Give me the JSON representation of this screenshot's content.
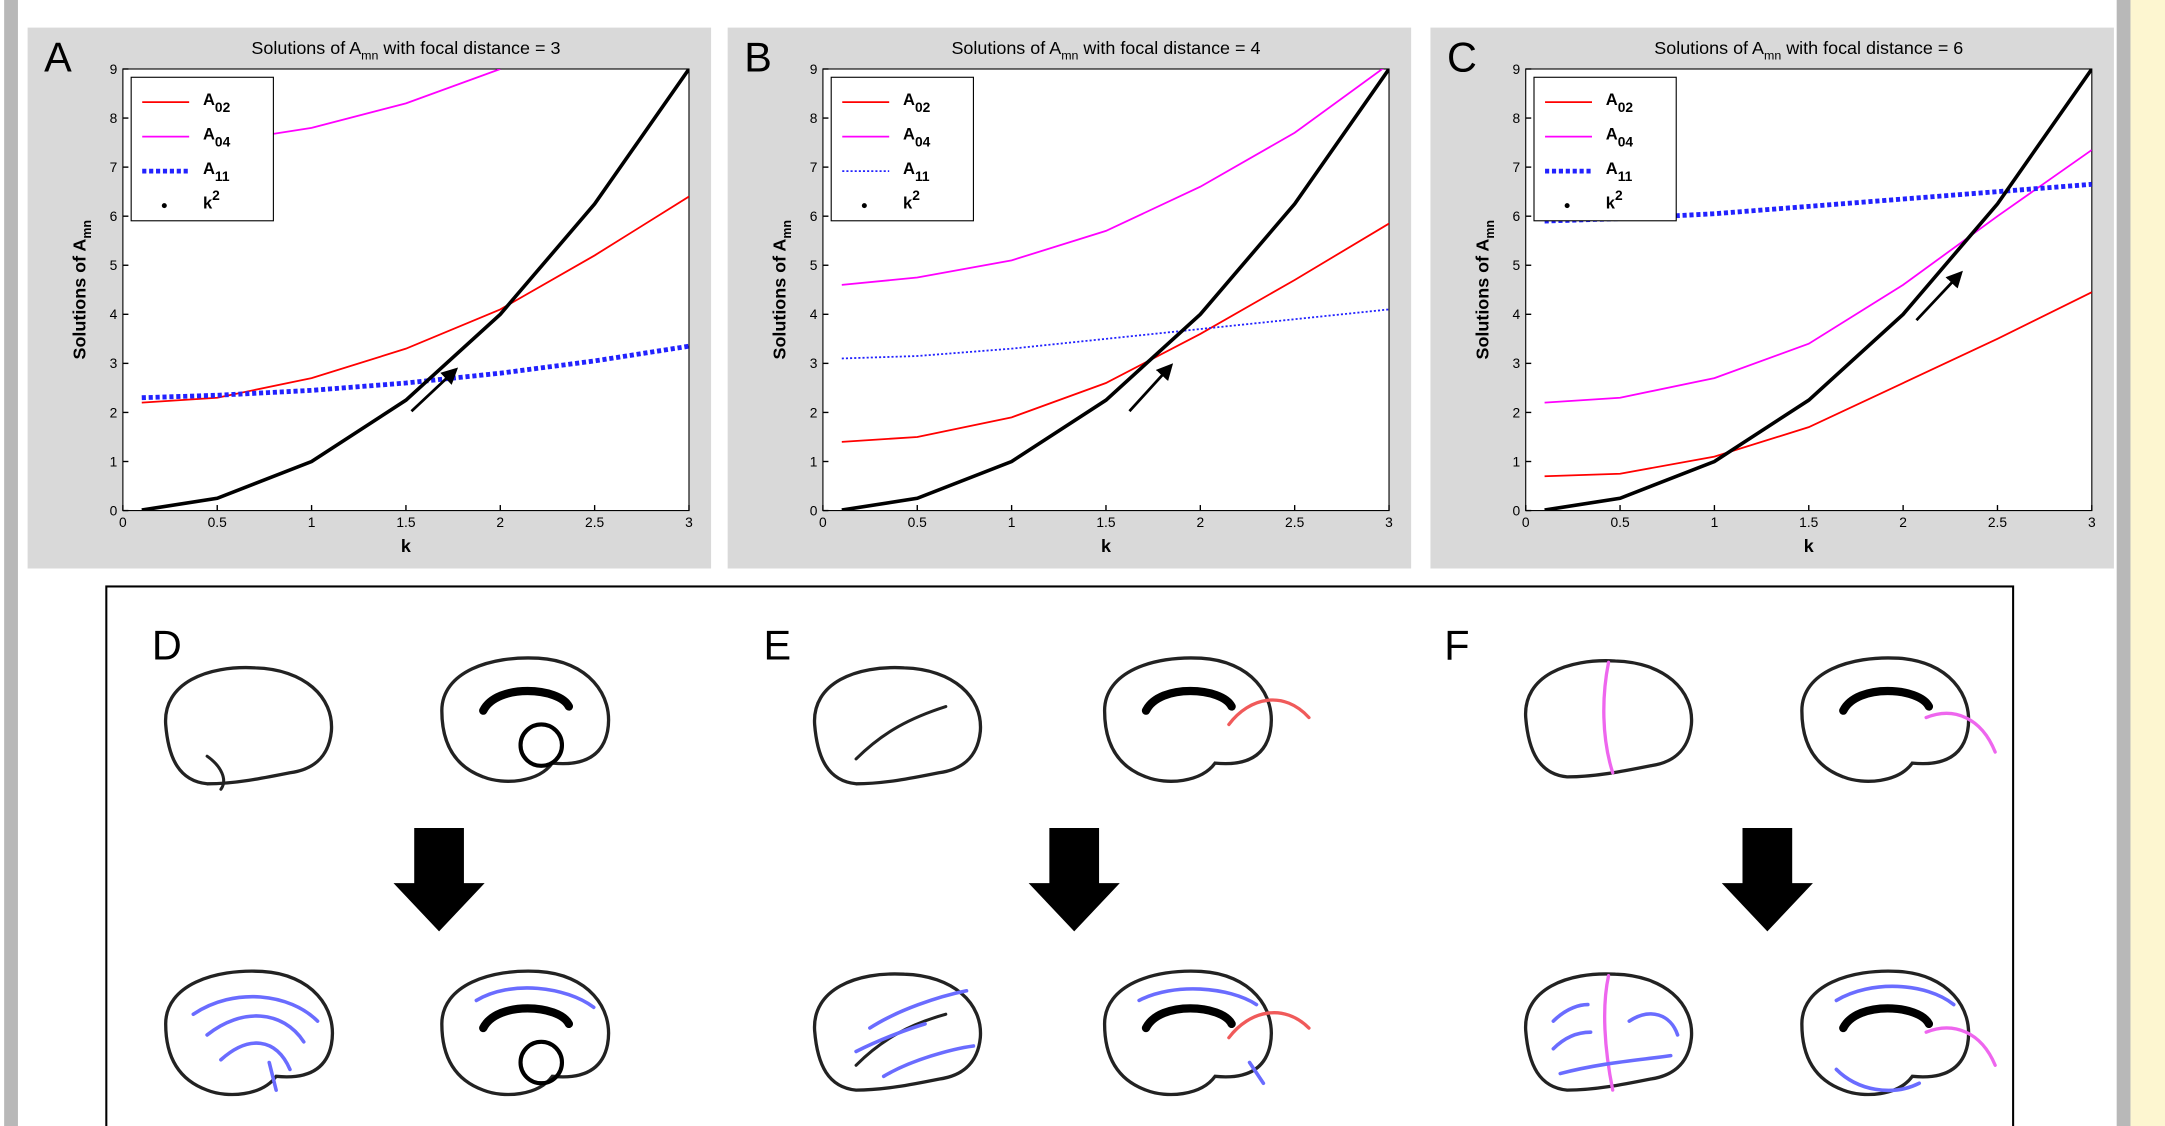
{
  "chart_data": [
    {
      "type": "line",
      "panel_label": "A",
      "title_prefix": "Solutions of A",
      "title_sub": "mn",
      "title_suffix": " with focal distance = 3",
      "xlabel": "k",
      "ylabel_prefix": "Solutions of A",
      "ylabel_sub": "mn",
      "x": [
        0.1,
        0.5,
        1,
        1.5,
        2,
        2.5,
        3
      ],
      "xlim": [
        0,
        3
      ],
      "ylim": [
        0,
        9
      ],
      "xticks": [
        0,
        0.5,
        1,
        1.5,
        2,
        2.5,
        3
      ],
      "yticks": [
        0,
        1,
        2,
        3,
        4,
        5,
        6,
        7,
        8,
        9
      ],
      "series": [
        {
          "name": "A",
          "subscript": "02",
          "color": "#ff0000",
          "style": "solid",
          "line_width": 1.3,
          "values": [
            2.2,
            2.3,
            2.7,
            3.3,
            4.1,
            5.2,
            6.4
          ]
        },
        {
          "name": "A",
          "subscript": "04",
          "color": "#ff00ff",
          "style": "solid",
          "line_width": 1.3,
          "values": [
            7.4,
            7.5,
            7.8,
            8.3,
            9.0,
            null,
            null
          ]
        },
        {
          "name": "A",
          "subscript": "11",
          "color": "#2222ff",
          "style": "dotted",
          "line_width": 3.5,
          "values": [
            2.3,
            2.35,
            2.45,
            2.6,
            2.8,
            3.05,
            3.35
          ]
        },
        {
          "name": "k",
          "superscript": "2",
          "color": "#000000",
          "style": "solid",
          "line_width": 2.6,
          "values": [
            0.01,
            0.25,
            1,
            2.25,
            4,
            6.25,
            9
          ]
        }
      ]
    },
    {
      "type": "line",
      "panel_label": "B",
      "title_prefix": "Solutions of A",
      "title_sub": "mn",
      "title_suffix": " with focal distance = 4",
      "xlabel": "k",
      "ylabel_prefix": "Solutions of A",
      "ylabel_sub": "mn",
      "x": [
        0.1,
        0.5,
        1,
        1.5,
        2,
        2.5,
        3
      ],
      "xlim": [
        0,
        3
      ],
      "ylim": [
        0,
        9
      ],
      "xticks": [
        0,
        0.5,
        1,
        1.5,
        2,
        2.5,
        3
      ],
      "yticks": [
        0,
        1,
        2,
        3,
        4,
        5,
        6,
        7,
        8,
        9
      ],
      "series": [
        {
          "name": "A",
          "subscript": "02",
          "color": "#ff0000",
          "style": "solid",
          "line_width": 1.3,
          "values": [
            1.4,
            1.5,
            1.9,
            2.6,
            3.6,
            4.7,
            5.85
          ]
        },
        {
          "name": "A",
          "subscript": "04",
          "color": "#ff00ff",
          "style": "solid",
          "line_width": 1.3,
          "values": [
            4.6,
            4.75,
            5.1,
            5.7,
            6.6,
            7.7,
            9.1
          ]
        },
        {
          "name": "A",
          "subscript": "11",
          "color": "#2222ff",
          "style": "dotted",
          "line_width": 1.3,
          "values": [
            3.1,
            3.15,
            3.3,
            3.5,
            3.7,
            3.9,
            4.1
          ]
        },
        {
          "name": "k",
          "superscript": "2",
          "color": "#000000",
          "style": "solid",
          "line_width": 2.6,
          "values": [
            0.01,
            0.25,
            1,
            2.25,
            4,
            6.25,
            9
          ]
        }
      ]
    },
    {
      "type": "line",
      "panel_label": "C",
      "title_prefix": "Solutions of A",
      "title_sub": "mn",
      "title_suffix": " with focal distance = 6",
      "xlabel": "k",
      "ylabel_prefix": "Solutions of A",
      "ylabel_sub": "mn",
      "x": [
        0.1,
        0.5,
        1,
        1.5,
        2,
        2.5,
        3
      ],
      "xlim": [
        0,
        3
      ],
      "ylim": [
        0,
        9
      ],
      "xticks": [
        0,
        0.5,
        1,
        1.5,
        2,
        2.5,
        3
      ],
      "yticks": [
        0,
        1,
        2,
        3,
        4,
        5,
        6,
        7,
        8,
        9
      ],
      "series": [
        {
          "name": "A",
          "subscript": "02",
          "color": "#ff0000",
          "style": "solid",
          "line_width": 1.3,
          "values": [
            0.7,
            0.75,
            1.1,
            1.7,
            2.6,
            3.5,
            4.45
          ]
        },
        {
          "name": "A",
          "subscript": "04",
          "color": "#ff00ff",
          "style": "solid",
          "line_width": 1.3,
          "values": [
            2.2,
            2.3,
            2.7,
            3.4,
            4.6,
            6.0,
            7.35
          ]
        },
        {
          "name": "A",
          "subscript": "11",
          "color": "#2222ff",
          "style": "dotted",
          "line_width": 3.5,
          "values": [
            5.9,
            5.95,
            6.05,
            6.2,
            6.35,
            6.5,
            6.65
          ]
        },
        {
          "name": "k",
          "superscript": "2",
          "color": "#000000",
          "style": "solid",
          "line_width": 2.6,
          "values": [
            0.01,
            0.25,
            1,
            2.25,
            4,
            6.25,
            9
          ]
        }
      ]
    }
  ],
  "diagram": {
    "panels": [
      {
        "label": "D"
      },
      {
        "label": "E"
      },
      {
        "label": "F"
      }
    ]
  }
}
